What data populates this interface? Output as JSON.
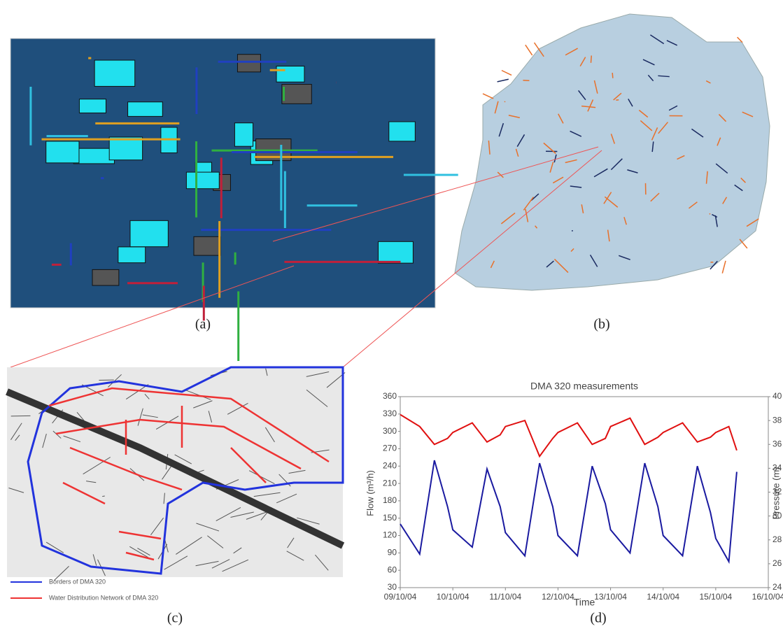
{
  "panels": {
    "a": "(a)",
    "b": "(b)",
    "c": "(c)",
    "d": "(d)"
  },
  "map_legend": [
    "Borders of DMA 320",
    "Water Distribution Network of DMA 320"
  ],
  "chart_data": {
    "type": "line",
    "title": "DMA 320 measurements",
    "x_label": "Time",
    "y_label": "Flow (m³/h)",
    "y2_label": "Pressure (m)",
    "x": [
      0,
      0.37,
      0.65,
      0.9,
      1,
      1.37,
      1.65,
      1.9,
      2,
      2.37,
      2.65,
      2.9,
      3,
      3.37,
      3.65,
      3.9,
      4,
      4.37,
      4.65,
      4.9,
      5,
      5.37,
      5.65,
      5.9,
      6,
      6.25,
      6.4
    ],
    "xlim": [
      0,
      7
    ],
    "xticks": [
      {
        "value": 0,
        "label": "09/10/04"
      },
      {
        "value": 1,
        "label": "10/10/04"
      },
      {
        "value": 2,
        "label": "11/10/04"
      },
      {
        "value": 3,
        "label": "12/10/04"
      },
      {
        "value": 4,
        "label": "13/10/04"
      },
      {
        "value": 5,
        "label": "14/10/04"
      },
      {
        "value": 6,
        "label": "15/10/04"
      },
      {
        "value": 7,
        "label": "16/10/04"
      }
    ],
    "ylim": [
      30,
      360
    ],
    "yticks": [
      30,
      60,
      90,
      120,
      150,
      180,
      210,
      240,
      270,
      300,
      330,
      360
    ],
    "y2lim": [
      24,
      40
    ],
    "y2ticks": [
      24,
      26,
      28,
      30,
      32,
      34,
      36,
      38,
      40
    ],
    "series": [
      {
        "color": "#1a1aa0",
        "values": [
          140,
          88,
          250,
          170,
          130,
          100,
          235,
          170,
          125,
          85,
          245,
          170,
          120,
          85,
          240,
          175,
          130,
          90,
          245,
          170,
          120,
          85,
          240,
          160,
          115,
          75,
          230
        ]
      },
      {
        "color": "#e01010",
        "axis": "y2",
        "values": [
          38.5,
          37.5,
          36,
          36.5,
          37,
          37.8,
          36.2,
          36.8,
          37.5,
          38,
          35,
          36.5,
          37,
          37.8,
          36,
          36.5,
          37.5,
          38.2,
          36,
          36.6,
          37,
          37.8,
          36.2,
          36.6,
          37,
          37.5,
          35.5
        ]
      }
    ]
  }
}
